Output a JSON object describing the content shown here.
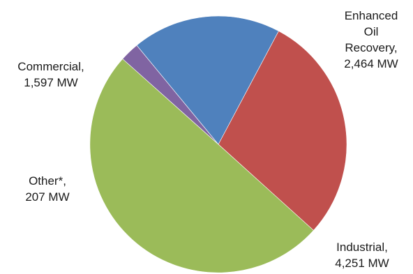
{
  "chart_data": {
    "type": "pie",
    "title": "",
    "unit": "MW",
    "start_angle_deg": -62,
    "direction": "clockwise",
    "legend": "none",
    "slices": [
      {
        "label": "Enhanced Oil Recovery",
        "value": 2464,
        "color": "#c0504d",
        "label_lines": [
          "Enhanced",
          "Oil",
          "Recovery,",
          "2,464 MW"
        ]
      },
      {
        "label": "Industrial",
        "value": 4251,
        "color": "#9bbb59",
        "label_lines": [
          "Industrial,",
          "4,251 MW"
        ]
      },
      {
        "label": "Other*",
        "value": 207,
        "color": "#8064a2",
        "label_lines": [
          "Other*,",
          "207 MW"
        ]
      },
      {
        "label": "Commercial",
        "value": 1597,
        "color": "#4f81bd",
        "label_lines": [
          "Commercial,",
          "1,597 MW"
        ]
      }
    ]
  }
}
